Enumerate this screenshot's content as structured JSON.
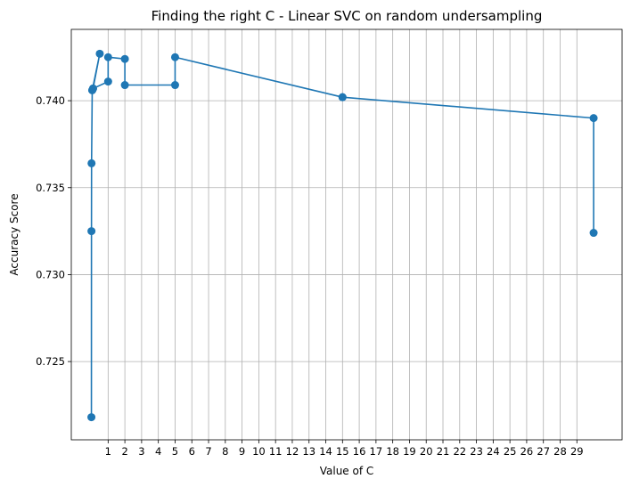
{
  "chart_data": {
    "type": "line",
    "title": "Finding the right C - Linear SVC on random undersampling",
    "xlabel": "Value of C",
    "ylabel": "Accuracy Score",
    "xlim": [
      -1.2,
      31.7
    ],
    "ylim": [
      0.7205,
      0.7441
    ],
    "grid": true,
    "marker": "circle",
    "line_color": "#1f77b4",
    "x_ticks": [
      1,
      2,
      3,
      4,
      5,
      6,
      7,
      8,
      9,
      10,
      11,
      12,
      13,
      14,
      15,
      16,
      17,
      18,
      19,
      20,
      21,
      22,
      23,
      24,
      25,
      26,
      27,
      28,
      29
    ],
    "x_tick_labels": [
      "1",
      "2",
      "3",
      "4",
      "5",
      "6",
      "7",
      "8",
      "9",
      "10",
      "11",
      "12",
      "13",
      "14",
      "15",
      "16",
      "17",
      "18",
      "19",
      "20",
      "21",
      "22",
      "23",
      "24",
      "25",
      "26",
      "27",
      "28",
      "29"
    ],
    "y_ticks": [
      0.725,
      0.73,
      0.735,
      0.74
    ],
    "y_tick_labels": [
      "0.725",
      "0.730",
      "0.735",
      "0.740"
    ],
    "series": [
      {
        "x": [
          0.001,
          0.005,
          0.01,
          0.05,
          0.1,
          0.5,
          0.05,
          0.1,
          1,
          1,
          2,
          2,
          5,
          5,
          15,
          15,
          30,
          30
        ],
        "y": [
          0.7218,
          0.7325,
          0.7364,
          0.7406,
          0.7407,
          0.7427,
          0.7406,
          0.7407,
          0.7411,
          0.7425,
          0.7424,
          0.7409,
          0.7409,
          0.7425,
          0.7402,
          0.7402,
          0.739,
          0.7324
        ]
      }
    ]
  }
}
